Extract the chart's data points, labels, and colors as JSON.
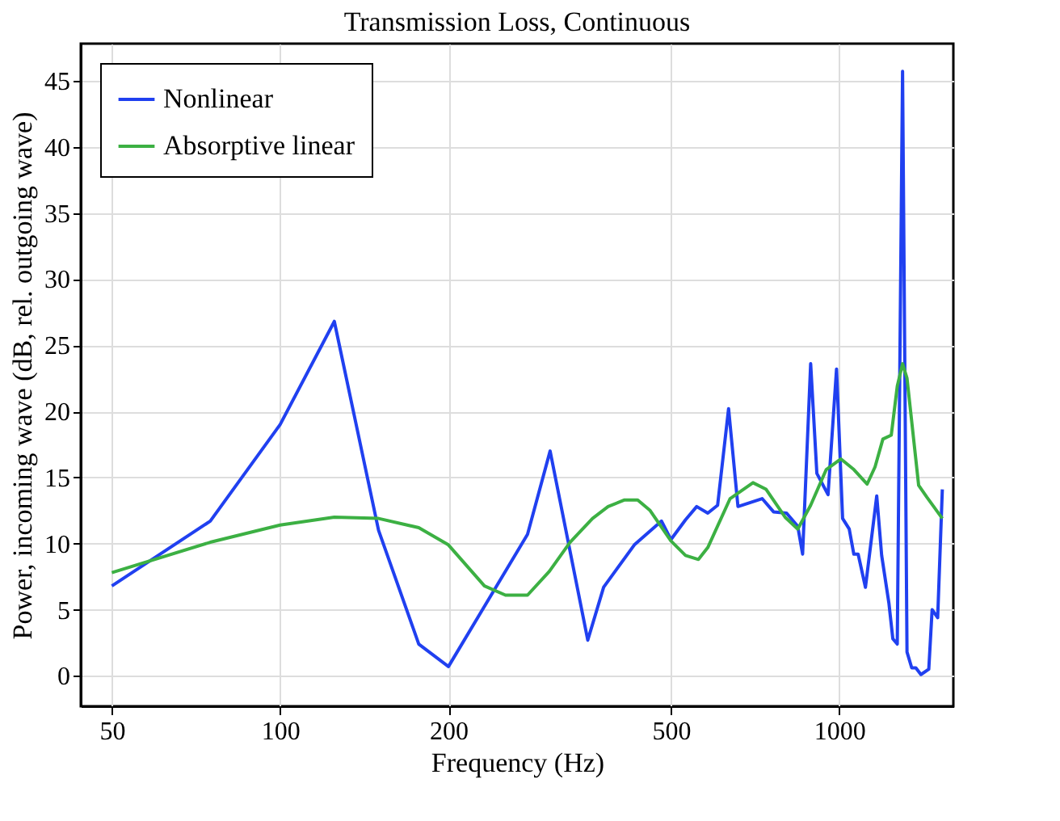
{
  "chart_data": {
    "type": "line",
    "title": "Transmission Loss, Continuous",
    "xlabel": "Frequency (Hz)",
    "ylabel": "Power, incoming wave (dB, rel. outgoing wave)",
    "log": "x",
    "xlim": [
      44,
      1600
    ],
    "xticks": [
      50,
      100,
      200,
      500,
      1000
    ],
    "ylim": [
      -2.3,
      47.8
    ],
    "yticks": [
      0,
      5,
      10,
      15,
      20,
      25,
      30,
      35,
      40,
      45
    ],
    "grid": true,
    "legend": "top left",
    "line_style": "solid",
    "marker": "none",
    "series": [
      {
        "name": "Nonlinear",
        "color": "#2040f0",
        "x": [
          50,
          75,
          100,
          125,
          150,
          177,
          200,
          277,
          304,
          355,
          379,
          430,
          481,
          500,
          531,
          556,
          582,
          606,
          634,
          659,
          728,
          763,
          805,
          843,
          860,
          889,
          912,
          955,
          989,
          1014,
          1042,
          1062,
          1081,
          1114,
          1167,
          1191,
          1227,
          1247,
          1270,
          1298,
          1322,
          1348,
          1371,
          1400,
          1446,
          1466,
          1500,
          1529
        ],
        "values": [
          6.8,
          11.7,
          19,
          26.8,
          11,
          2.4,
          0.7,
          10.7,
          17,
          2.7,
          6.7,
          9.9,
          11.7,
          10.3,
          11.8,
          12.8,
          12.3,
          12.9,
          20.2,
          12.8,
          13.4,
          12.4,
          12.3,
          11.3,
          9.2,
          23.6,
          15.3,
          13.7,
          23.2,
          11.9,
          11.1,
          9.2,
          9.2,
          6.7,
          13.6,
          9.1,
          5.5,
          2.8,
          2.4,
          45.7,
          1.8,
          0.6,
          0.6,
          0.1,
          0.5,
          5,
          4.4,
          14.1
        ]
      },
      {
        "name": "Absorptive linear",
        "color": "#3cb043",
        "x": [
          50,
          75,
          100,
          125,
          150,
          177,
          200,
          232,
          253,
          277,
          303,
          330,
          362,
          386,
          413,
          436,
          459,
          500,
          531,
          560,
          582,
          638,
          701,
          740,
          800,
          843,
          889,
          948,
          1007,
          1062,
          1122,
          1159,
          1197,
          1239,
          1270,
          1298,
          1322,
          1387,
          1435,
          1529
        ],
        "values": [
          7.8,
          10.1,
          11.4,
          12,
          11.9,
          11.2,
          9.9,
          6.8,
          6.1,
          6.1,
          7.9,
          10.1,
          11.9,
          12.8,
          13.3,
          13.3,
          12.5,
          10.2,
          9.1,
          8.8,
          9.7,
          13.4,
          14.6,
          14.1,
          12,
          11.1,
          12.9,
          15.6,
          16.4,
          15.6,
          14.5,
          15.8,
          17.9,
          18.2,
          21.9,
          23.6,
          22.5,
          14.4,
          13.5,
          11.9
        ]
      }
    ]
  }
}
